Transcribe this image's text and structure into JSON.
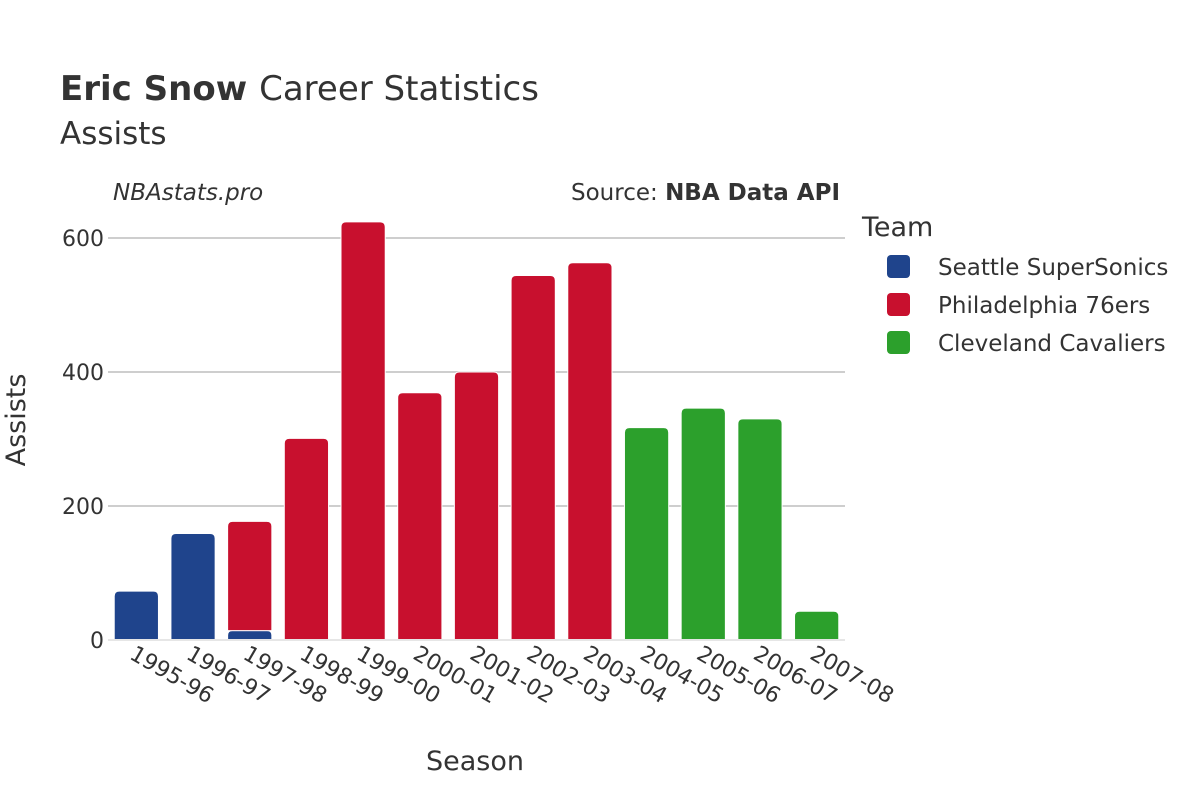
{
  "header": {
    "player_name": "Eric Snow",
    "title_rest": "Career Statistics",
    "subtitle": "Assists"
  },
  "credits": {
    "site": "NBAstats.pro",
    "source_prefix": "Source: ",
    "source_name": "NBA Data API"
  },
  "legend": {
    "title": "Team"
  },
  "chart_data": {
    "type": "bar",
    "barmode": "stack",
    "title": "Eric Snow Career Statistics",
    "subtitle": "Assists",
    "xlabel": "Season",
    "ylabel": "Assists",
    "ylim": [
      0,
      650
    ],
    "yticks": [
      0,
      200,
      400,
      600
    ],
    "grid": true,
    "legend_position": "right",
    "categories": [
      "1995-96",
      "1996-97",
      "1997-98",
      "1998-99",
      "1999-00",
      "2000-01",
      "2001-02",
      "2002-03",
      "2003-04",
      "2004-05",
      "2005-06",
      "2006-07",
      "2007-08"
    ],
    "series": [
      {
        "name": "Seattle SuperSonics",
        "color": "#1f448c",
        "values": [
          73,
          159,
          14,
          0,
          0,
          0,
          0,
          0,
          0,
          0,
          0,
          0,
          0
        ]
      },
      {
        "name": "Philadelphia 76ers",
        "color": "#c8102e",
        "values": [
          0,
          0,
          163,
          301,
          624,
          369,
          400,
          544,
          563,
          0,
          0,
          0,
          0
        ]
      },
      {
        "name": "Cleveland Cavaliers",
        "color": "#2ca02c",
        "values": [
          0,
          0,
          0,
          0,
          0,
          0,
          0,
          0,
          0,
          317,
          346,
          330,
          43
        ]
      }
    ]
  }
}
